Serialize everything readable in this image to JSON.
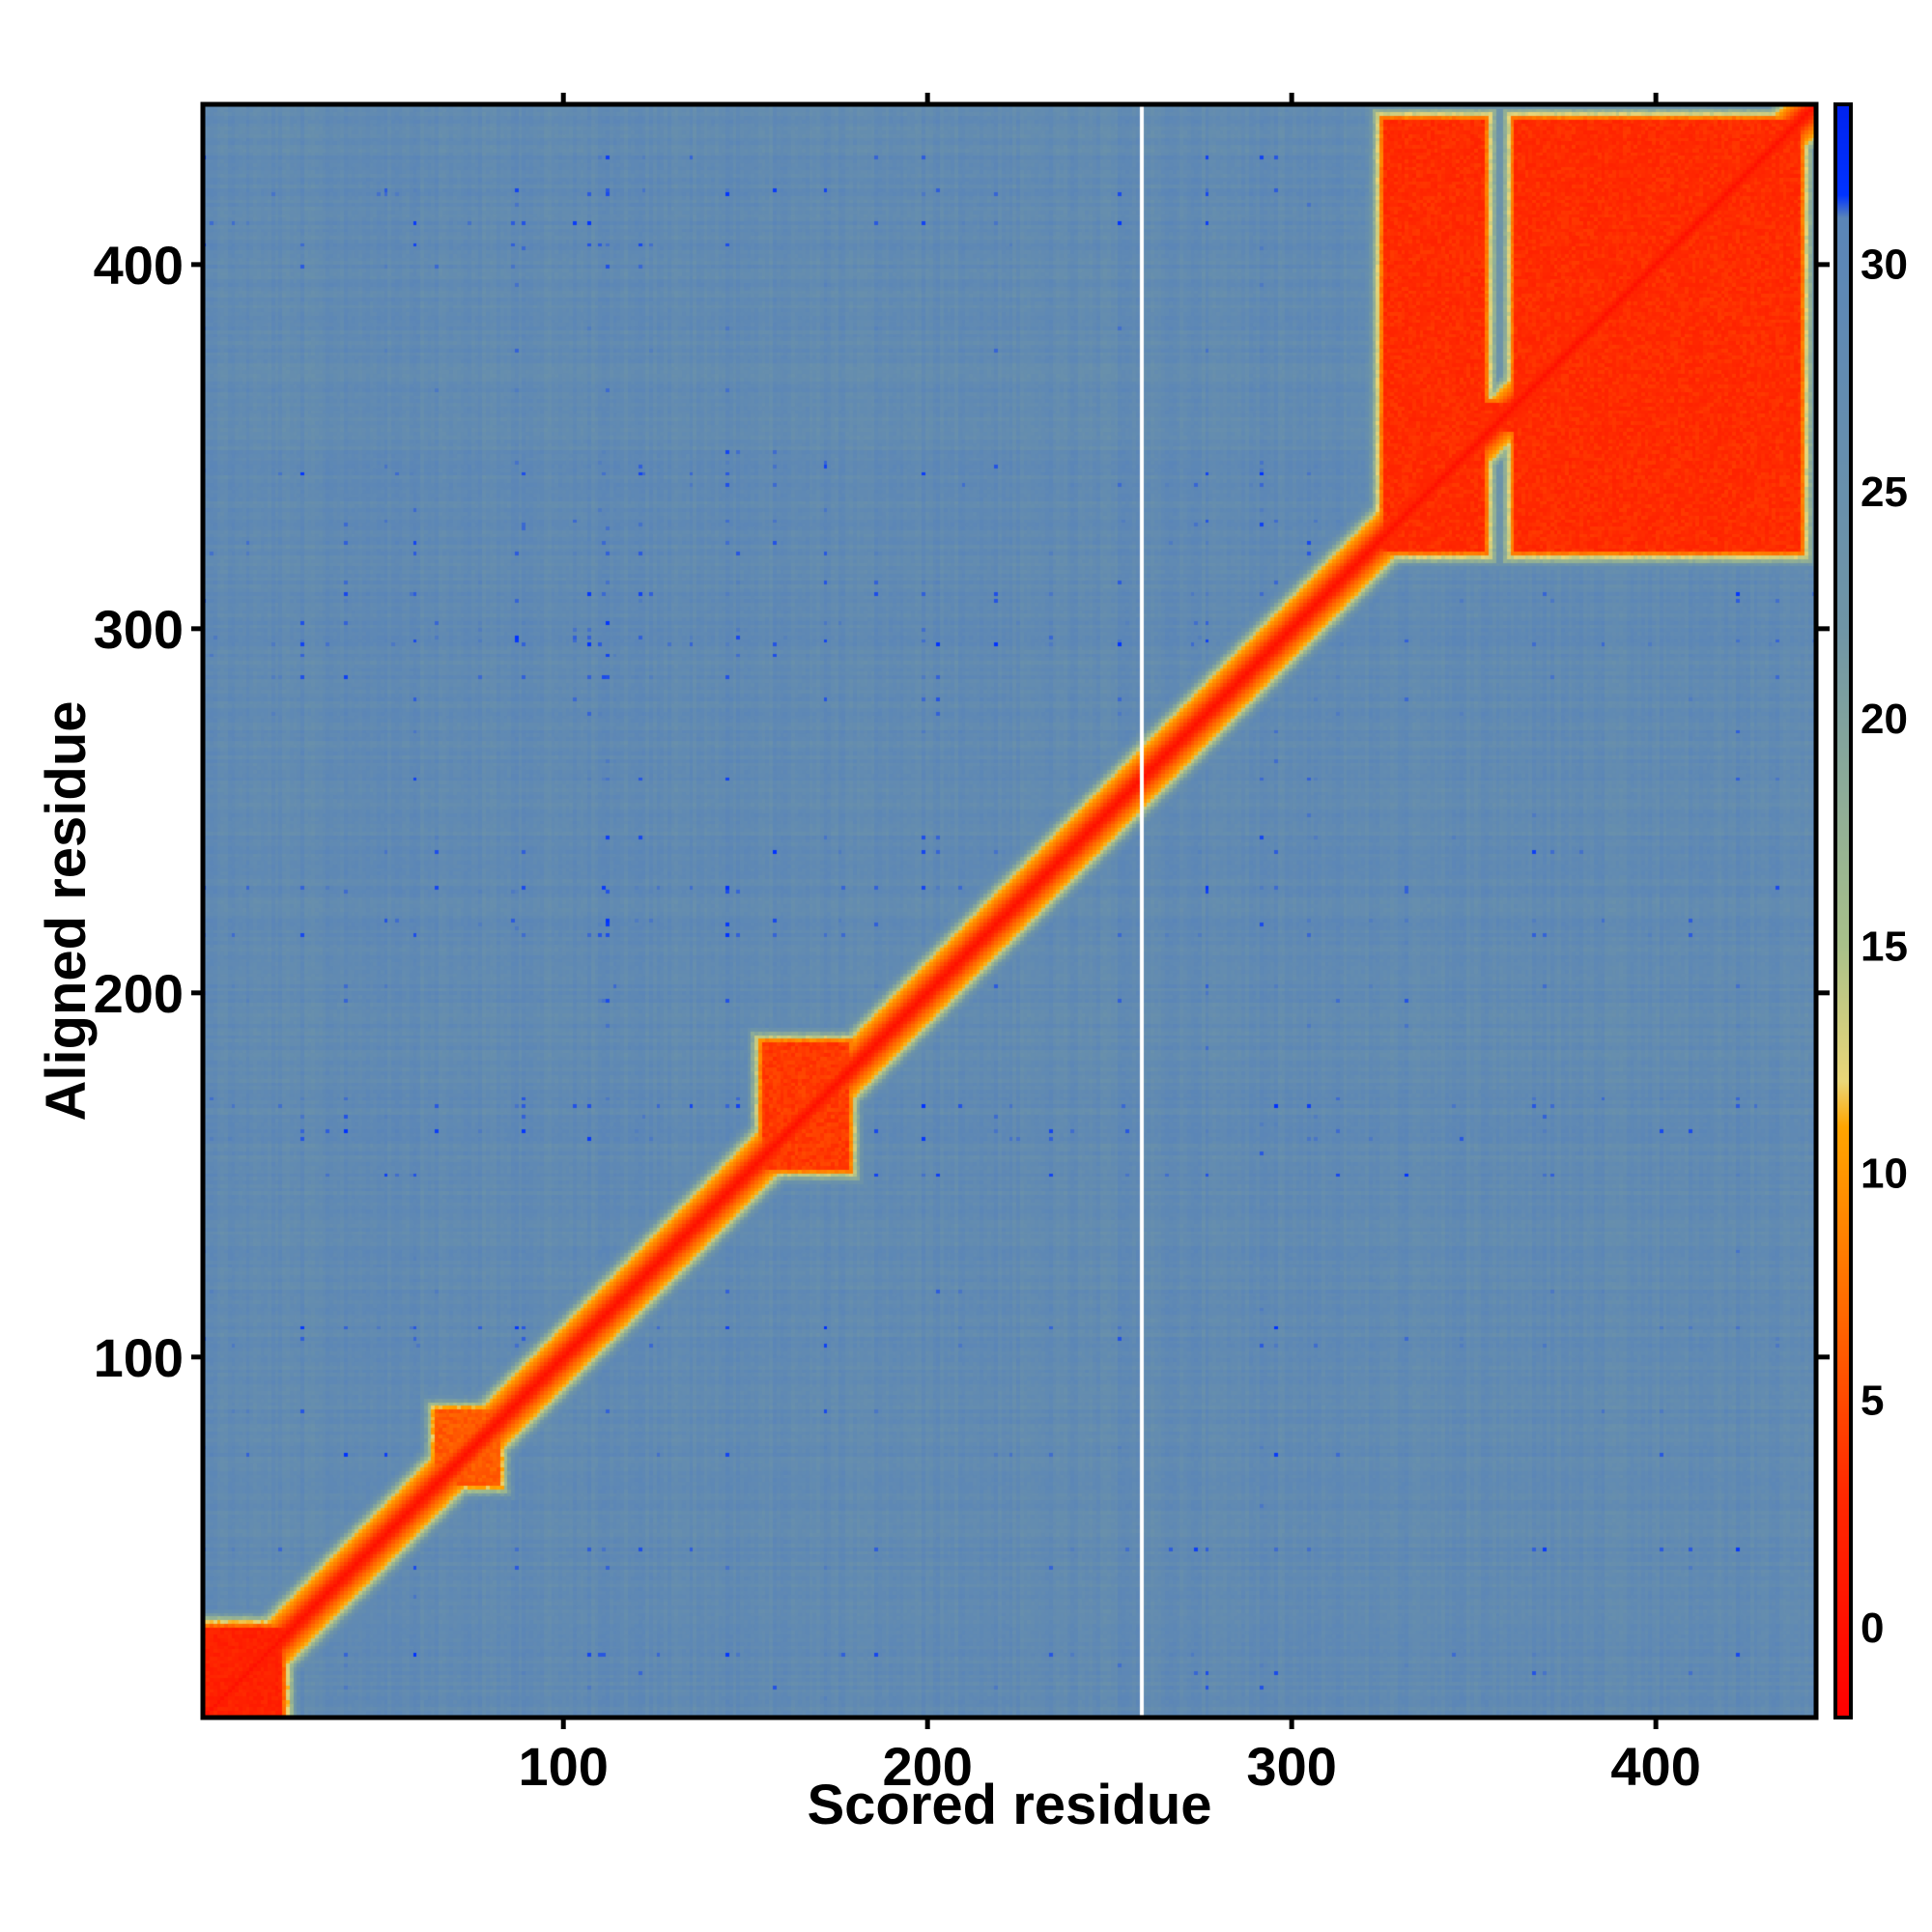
{
  "chart_data": {
    "type": "heatmap",
    "xlabel": "Scored residue",
    "ylabel": "Aligned residue",
    "xlim": [
      1,
      444
    ],
    "ylim": [
      1,
      444
    ],
    "x_ticks": [
      100,
      200,
      300,
      400
    ],
    "y_ticks": [
      100,
      200,
      300,
      400
    ],
    "colorbar": {
      "range": [
        -2,
        33.5
      ],
      "ticks": [
        0,
        5,
        10,
        15,
        20,
        25,
        30
      ],
      "stops": [
        {
          "value": -2,
          "color": "#ff0000"
        },
        {
          "value": 3,
          "color": "#ff2a00"
        },
        {
          "value": 7,
          "color": "#ff6a00"
        },
        {
          "value": 11,
          "color": "#ffa500"
        },
        {
          "value": 12,
          "color": "#e9d678"
        },
        {
          "value": 15,
          "color": "#a8c08a"
        },
        {
          "value": 22,
          "color": "#6f95a6"
        },
        {
          "value": 31,
          "color": "#5a85b8"
        },
        {
          "value": 31.5,
          "color": "#0033ff"
        },
        {
          "value": 33.5,
          "color": "#0022ee"
        }
      ]
    },
    "background_value": 28,
    "diagonal_value": 0,
    "blocks": [
      {
        "x": [
          1,
          22
        ],
        "y": [
          1,
          25
        ],
        "value": 2
      },
      {
        "x": [
          155,
          178
        ],
        "y": [
          152,
          186
        ],
        "value": 4
      },
      {
        "x": [
          65,
          82
        ],
        "y": [
          65,
          85
        ],
        "value": 6
      },
      {
        "x": [
          326,
          353
        ],
        "y": [
          322,
          440
        ],
        "value": 3
      },
      {
        "x": [
          362,
          440
        ],
        "y": [
          322,
          440
        ],
        "value": 3
      },
      {
        "x": [
          353,
          362
        ],
        "y": [
          355,
          362
        ],
        "value": 3
      }
    ],
    "gap_column_x": 259
  }
}
